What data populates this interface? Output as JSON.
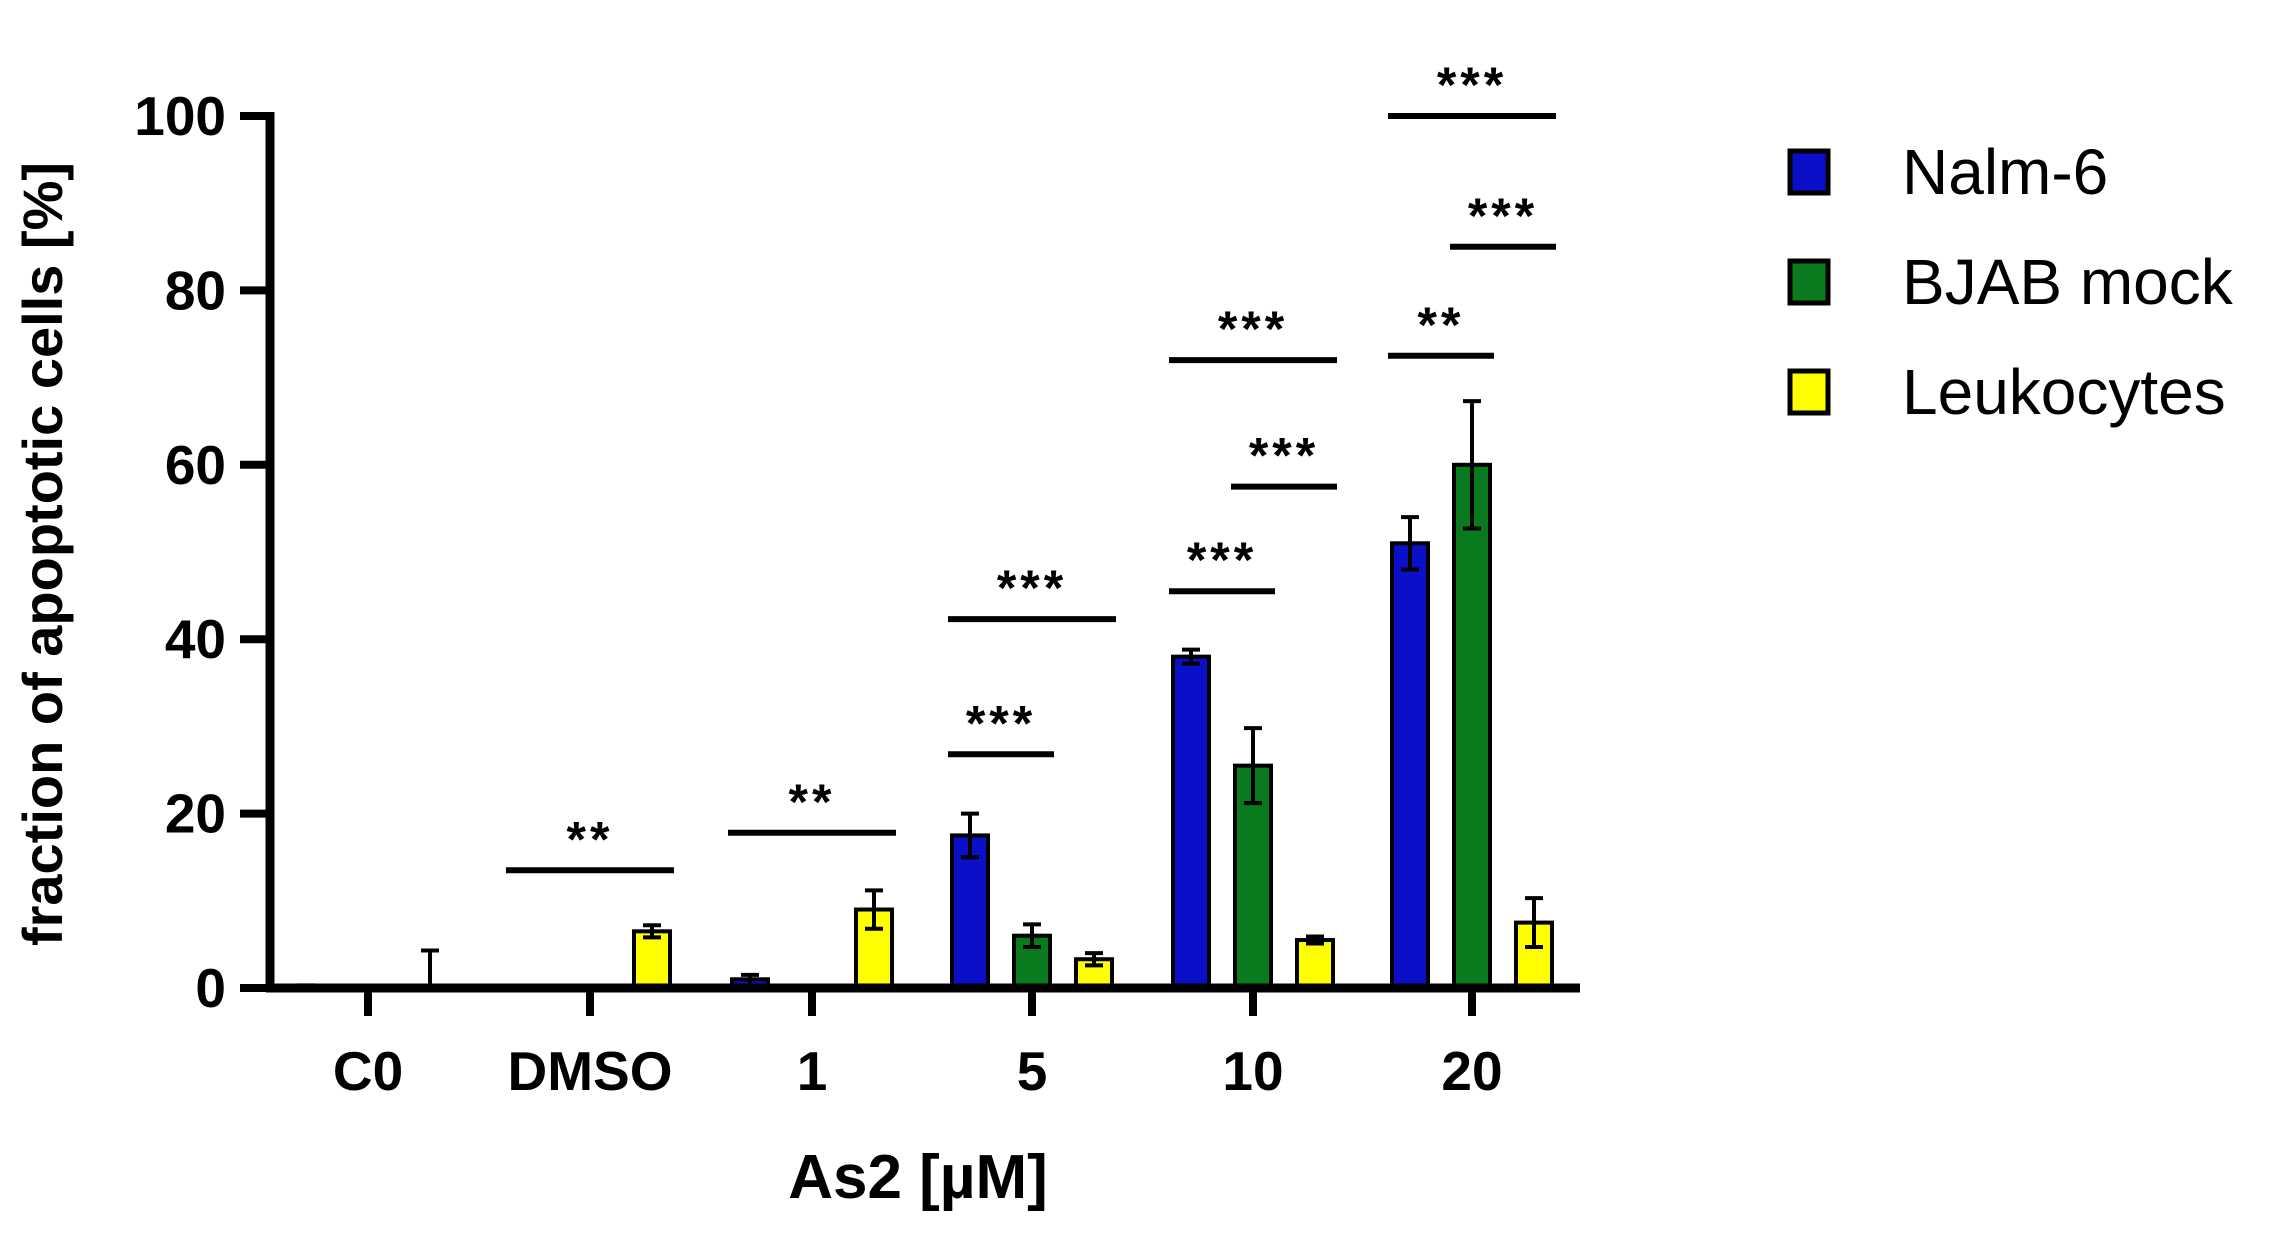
{
  "chart_data": {
    "type": "bar",
    "xlabel": "As2 [µM]",
    "ylabel": "fraction of apoptotic cells [%]",
    "ylim": [
      0,
      100
    ],
    "yticks": [
      0,
      20,
      40,
      60,
      80,
      100
    ],
    "categories": [
      "C0",
      "DMSO",
      "1",
      "5",
      "10",
      "20"
    ],
    "legend_position": "right",
    "series": [
      {
        "name": "Nalm-6",
        "color": "#0a0fc8",
        "values": [
          0,
          0,
          1,
          17.5,
          38,
          51
        ],
        "errors": [
          0.3,
          0,
          0.5,
          2.5,
          0.8,
          3
        ]
      },
      {
        "name": "BJAB mock",
        "color": "#0a7a1e",
        "values": [
          0,
          0,
          0,
          6,
          25.5,
          60
        ],
        "errors": [
          0.2,
          0,
          0,
          1.3,
          4.3,
          7.3
        ]
      },
      {
        "name": "Leukocytes",
        "color": "#ffff00",
        "values": [
          0,
          6.5,
          9,
          3.3,
          5.5,
          7.5
        ],
        "errors": [
          4.3,
          0.7,
          2.2,
          0.7,
          0.4,
          2.8
        ]
      }
    ],
    "annotations": [
      {
        "label": "**",
        "category": "DMSO",
        "from": 0,
        "to": 2,
        "y": 13.5
      },
      {
        "label": "**",
        "category": "1",
        "from": 0,
        "to": 2,
        "y": 17.8
      },
      {
        "label": "***",
        "category": "5",
        "from": 0,
        "to": 1,
        "y": 26.8
      },
      {
        "label": "***",
        "category": "5",
        "from": 0,
        "to": 2,
        "y": 42.3
      },
      {
        "label": "***",
        "category": "10",
        "from": 0,
        "to": 1,
        "y": 45.5
      },
      {
        "label": "***",
        "category": "10",
        "from": 1,
        "to": 2,
        "y": 57.5
      },
      {
        "label": "***",
        "category": "10",
        "from": 0,
        "to": 2,
        "y": 72
      },
      {
        "label": "**",
        "category": "20",
        "from": 0,
        "to": 1,
        "y": 72.5
      },
      {
        "label": "***",
        "category": "20",
        "from": 1,
        "to": 2,
        "y": 85
      },
      {
        "label": "***",
        "category": "20",
        "from": 0,
        "to": 2,
        "y": 100
      }
    ]
  }
}
